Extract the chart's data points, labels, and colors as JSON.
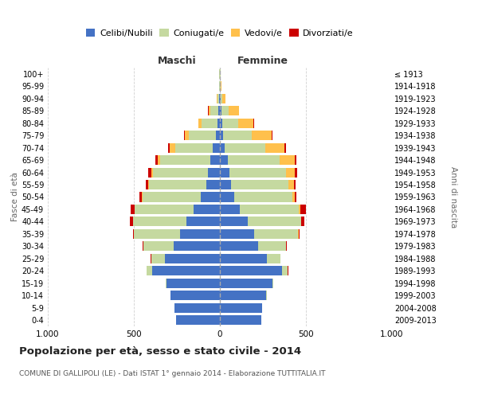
{
  "age_groups": [
    "0-4",
    "5-9",
    "10-14",
    "15-19",
    "20-24",
    "25-29",
    "30-34",
    "35-39",
    "40-44",
    "45-49",
    "50-54",
    "55-59",
    "60-64",
    "65-69",
    "70-74",
    "75-79",
    "80-84",
    "85-89",
    "90-94",
    "95-99",
    "100+"
  ],
  "birth_years": [
    "2009-2013",
    "2004-2008",
    "1999-2003",
    "1994-1998",
    "1989-1993",
    "1984-1988",
    "1979-1983",
    "1974-1978",
    "1969-1973",
    "1964-1968",
    "1959-1963",
    "1954-1958",
    "1949-1953",
    "1944-1948",
    "1939-1943",
    "1934-1938",
    "1929-1933",
    "1924-1928",
    "1919-1923",
    "1914-1918",
    "≤ 1913"
  ],
  "maschi": {
    "celibi": [
      255,
      265,
      285,
      310,
      395,
      320,
      270,
      230,
      195,
      155,
      110,
      80,
      70,
      55,
      40,
      25,
      15,
      10,
      5,
      2,
      2
    ],
    "coniugati": [
      1,
      1,
      2,
      5,
      30,
      80,
      175,
      270,
      310,
      340,
      340,
      330,
      320,
      290,
      220,
      155,
      90,
      45,
      10,
      3,
      1
    ],
    "vedovi": [
      0,
      0,
      0,
      0,
      0,
      0,
      0,
      1,
      1,
      2,
      3,
      5,
      10,
      15,
      30,
      25,
      20,
      12,
      3,
      1,
      0
    ],
    "divorziati": [
      0,
      0,
      0,
      0,
      1,
      2,
      3,
      5,
      15,
      20,
      15,
      15,
      15,
      15,
      10,
      3,
      2,
      1,
      0,
      0,
      0
    ]
  },
  "femmine": {
    "nubili": [
      240,
      245,
      270,
      305,
      360,
      275,
      220,
      200,
      160,
      115,
      85,
      65,
      55,
      45,
      30,
      20,
      15,
      10,
      5,
      2,
      2
    ],
    "coniugate": [
      1,
      1,
      2,
      5,
      35,
      75,
      165,
      255,
      310,
      345,
      335,
      335,
      330,
      300,
      235,
      165,
      90,
      40,
      8,
      2,
      1
    ],
    "vedove": [
      0,
      0,
      0,
      0,
      0,
      0,
      1,
      2,
      4,
      8,
      15,
      30,
      50,
      90,
      110,
      115,
      90,
      60,
      18,
      5,
      2
    ],
    "divorziate": [
      0,
      0,
      0,
      0,
      1,
      1,
      3,
      8,
      15,
      30,
      10,
      10,
      15,
      10,
      8,
      4,
      3,
      2,
      1,
      0,
      0
    ]
  },
  "colors": {
    "celibi": "#4472c4",
    "coniugati": "#c5d9a0",
    "vedovi": "#ffc04c",
    "divorziati": "#cc0000"
  },
  "title": "Popolazione per età, sesso e stato civile - 2014",
  "subtitle": "COMUNE DI GALLIPOLI (LE) - Dati ISTAT 1° gennaio 2014 - Elaborazione TUTTITALIA.IT",
  "xlabel_left": "Maschi",
  "xlabel_right": "Femmine",
  "ylabel_left": "Fasce di età",
  "ylabel_right": "Anni di nascita",
  "xlim": 1000,
  "background_color": "#ffffff",
  "grid_color": "#cccccc",
  "legend_labels": [
    "Celibi/Nubili",
    "Coniugati/e",
    "Vedovi/e",
    "Divorziati/e"
  ]
}
